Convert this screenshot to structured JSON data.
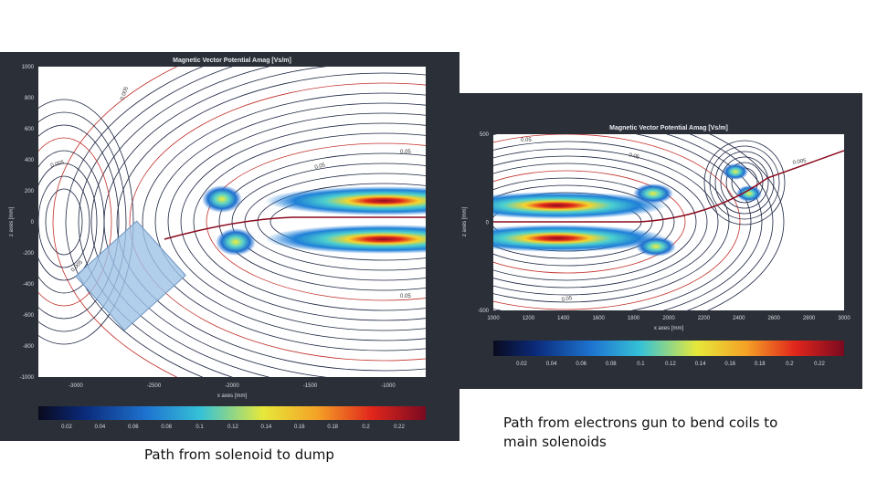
{
  "left_panel": {
    "title": "Magnetic Vector Potential Amag [Vs/m]",
    "x_label": "x axes [mm]",
    "y_label": "z axes [mm]",
    "x_ticks": [
      "-3000",
      "-2500",
      "-2000",
      "-1500",
      "-1000"
    ],
    "y_ticks": [
      "1000",
      "800",
      "600",
      "400",
      "200",
      "0",
      "-200",
      "-400",
      "-600",
      "-800",
      "-1000"
    ],
    "colorbar_ticks": [
      "0.02",
      "0.04",
      "0.06",
      "0.08",
      "0.1",
      "0.12",
      "0.14",
      "0.16",
      "0.18",
      "0.2",
      "0.22"
    ],
    "contour_labels": [
      "0.005",
      "0.05",
      "0.005",
      "0.005",
      "0.05",
      "0.05"
    ]
  },
  "right_panel": {
    "title": "Magnetic Vector Potential Amag [Vs/m]",
    "x_label": "x axes [mm]",
    "y_label": "z axes [mm]",
    "x_ticks": [
      "1000",
      "1200",
      "1400",
      "1600",
      "1800",
      "2000",
      "2200",
      "2400",
      "2600",
      "2800",
      "3000"
    ],
    "y_ticks": [
      "500",
      "0",
      "-500"
    ],
    "colorbar_ticks": [
      "0.02",
      "0.04",
      "0.06",
      "0.08",
      "0.1",
      "0.12",
      "0.14",
      "0.16",
      "0.18",
      "0.2",
      "0.22"
    ],
    "contour_labels": [
      "0.05",
      "0.05",
      "0.005",
      "0.05"
    ]
  },
  "captions": {
    "left": "Path from solenoid to dump",
    "right": "Path from electrons gun to bend coils to main solenoids"
  }
}
